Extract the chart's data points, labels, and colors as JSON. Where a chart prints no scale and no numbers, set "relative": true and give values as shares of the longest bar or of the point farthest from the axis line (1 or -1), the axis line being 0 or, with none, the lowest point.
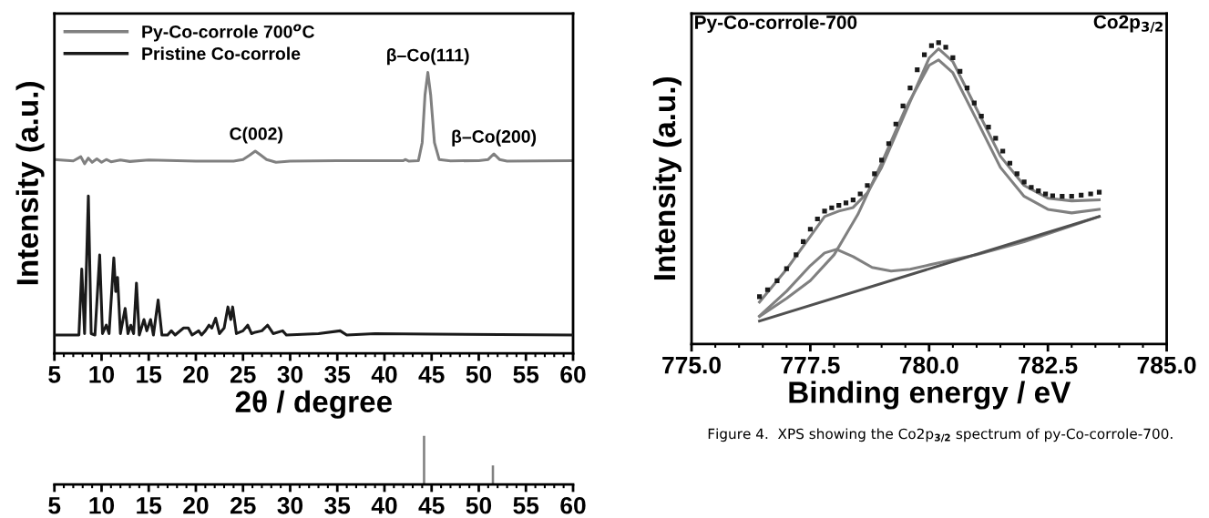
{
  "chart_data": [
    {
      "type": "line",
      "relative": true,
      "xlabel": "2θ / degree",
      "ylabel": "Intensity (a.u.)",
      "xlim": [
        5,
        60
      ],
      "xticks": [
        5,
        10,
        15,
        20,
        25,
        30,
        35,
        40,
        45,
        50,
        55,
        60
      ],
      "legend": "top left",
      "tick_labels": "x",
      "series": [
        {
          "name": "Py-Co-corrole 700$^{o}$C",
          "color": "#808080",
          "x": [
            5,
            7,
            7.8,
            8.2,
            8.6,
            9,
            9.5,
            10,
            10.5,
            11,
            12,
            13,
            15,
            18,
            20,
            24,
            25,
            25.7,
            26.3,
            26.9,
            27.5,
            28.5,
            30,
            35,
            40,
            42,
            42.2,
            42.6,
            43.6,
            44.0,
            44.3,
            44.6,
            44.9,
            45.3,
            45.8,
            47,
            50,
            51,
            51.6,
            52.2,
            53,
            60
          ],
          "values": [
            0.69,
            0.685,
            0.7,
            0.675,
            0.695,
            0.68,
            0.692,
            0.68,
            0.69,
            0.682,
            0.688,
            0.683,
            0.688,
            0.686,
            0.684,
            0.684,
            0.69,
            0.705,
            0.72,
            0.705,
            0.69,
            0.68,
            0.684,
            0.686,
            0.686,
            0.686,
            0.69,
            0.684,
            0.686,
            0.75,
            0.92,
            1.0,
            0.92,
            0.75,
            0.69,
            0.685,
            0.686,
            0.69,
            0.71,
            0.69,
            0.684,
            0.686
          ]
        },
        {
          "name": "Pristine Co-corrole",
          "color": "#1a1a1a",
          "x": [
            5,
            7.6,
            7.9,
            8.2,
            8.6,
            8.9,
            9.3,
            9.8,
            10.1,
            10.5,
            10.8,
            11.3,
            11.5,
            11.7,
            12.0,
            12.5,
            12.8,
            13.1,
            13.4,
            13.7,
            14.0,
            14.5,
            14.8,
            15.2,
            15.5,
            16.0,
            16.4,
            17,
            17.4,
            17.8,
            18.7,
            19.2,
            19.6,
            20.3,
            20.6,
            21,
            21.4,
            21.7,
            22.1,
            22.5,
            23.0,
            23.4,
            23.7,
            23.9,
            24.3,
            25,
            25.5,
            25.9,
            26.3,
            27.0,
            27.6,
            28.2,
            29.2,
            29.6,
            33,
            35.3,
            36,
            39,
            45,
            60
          ],
          "values": [
            0.065,
            0.065,
            0.3,
            0.07,
            0.56,
            0.07,
            0.065,
            0.35,
            0.07,
            0.1,
            0.07,
            0.34,
            0.22,
            0.27,
            0.07,
            0.16,
            0.07,
            0.1,
            0.07,
            0.25,
            0.065,
            0.12,
            0.08,
            0.12,
            0.065,
            0.19,
            0.065,
            0.065,
            0.08,
            0.065,
            0.09,
            0.09,
            0.065,
            0.08,
            0.065,
            0.08,
            0.1,
            0.09,
            0.125,
            0.07,
            0.09,
            0.165,
            0.12,
            0.165,
            0.07,
            0.08,
            0.1,
            0.07,
            0.075,
            0.08,
            0.1,
            0.07,
            0.08,
            0.065,
            0.07,
            0.08,
            0.065,
            0.07,
            0.068,
            0.065
          ]
        }
      ],
      "annotations": [
        {
          "text": "C(002)",
          "x": 26.4,
          "y": 0.72
        },
        {
          "text": "β–Co(111)",
          "x": 44.6,
          "y": 1.0
        },
        {
          "text": "β–Co(200)",
          "x": 51.6,
          "y": 0.71
        }
      ]
    },
    {
      "type": "bar",
      "relative": true,
      "xlim": [
        5,
        60
      ],
      "xticks": [
        5,
        10,
        15,
        20,
        25,
        30,
        35,
        40,
        45,
        50,
        55,
        60
      ],
      "tick_labels": "x",
      "color": "#808080",
      "x": [
        44.2,
        51.5
      ],
      "values": [
        1,
        0.39
      ]
    },
    {
      "type": "line",
      "relative": true,
      "xlabel": "Binding energy / eV",
      "ylabel": "Intensity (a.u.)",
      "title": "Py-Co-corrole-700",
      "subtitle": "Co2p$_{3/2}$",
      "xlim": [
        775,
        785
      ],
      "xticks": [
        {
          "value": 775,
          "label": "775.0"
        },
        {
          "value": 777.5,
          "label": "777.5"
        },
        {
          "value": 780,
          "label": "780.0"
        },
        {
          "value": 782.5,
          "label": "782.5"
        },
        {
          "value": 785,
          "label": "785.0"
        }
      ],
      "tick_labels": "x",
      "annotations": [
        "Figure 4.  XPS showing the Co2p$_{3/2}$ spectrum of py-Co-corrole-700."
      ],
      "series": [
        {
          "type": "scatter",
          "marker": "square",
          "color": "#1a1a1a",
          "x": [
            776.43,
            776.6,
            776.8,
            777.0,
            777.2,
            777.35,
            777.5,
            777.65,
            777.8,
            777.95,
            778.1,
            778.25,
            778.4,
            778.55,
            778.7,
            778.85,
            779.0,
            779.15,
            779.3,
            779.45,
            779.6,
            779.75,
            779.9,
            780.05,
            780.2,
            780.35,
            780.5,
            780.65,
            780.8,
            780.95,
            781.1,
            781.25,
            781.4,
            781.55,
            781.7,
            781.85,
            782.0,
            782.15,
            782.3,
            782.45,
            782.6,
            782.8,
            783.0,
            783.2,
            783.4,
            783.58
          ],
          "values": [
            0.157,
            0.18,
            0.21,
            0.25,
            0.296,
            0.34,
            0.381,
            0.415,
            0.441,
            0.452,
            0.46,
            0.468,
            0.478,
            0.498,
            0.526,
            0.565,
            0.61,
            0.665,
            0.73,
            0.79,
            0.85,
            0.91,
            0.96,
            0.99,
            1.0,
            0.985,
            0.95,
            0.905,
            0.85,
            0.8,
            0.756,
            0.72,
            0.683,
            0.64,
            0.6,
            0.565,
            0.538,
            0.52,
            0.508,
            0.498,
            0.492,
            0.49,
            0.49,
            0.494,
            0.498,
            0.504
          ]
        },
        {
          "type": "line",
          "color": "#808080",
          "x": [
            776.43,
            777.0,
            777.5,
            777.8,
            778.1,
            778.4,
            778.7,
            779.0,
            779.5,
            780.0,
            780.2,
            780.5,
            781.0,
            781.5,
            782.0,
            782.5,
            783.0,
            783.58
          ],
          "values": [
            0.139,
            0.248,
            0.357,
            0.423,
            0.441,
            0.453,
            0.502,
            0.586,
            0.768,
            0.949,
            0.98,
            0.937,
            0.78,
            0.623,
            0.526,
            0.484,
            0.475,
            0.478
          ]
        },
        {
          "type": "line",
          "color": "#808080",
          "x": [
            776.43,
            777.0,
            777.5,
            778.0,
            778.5,
            779.0,
            779.5,
            780.0,
            780.2,
            780.5,
            781.0,
            781.5,
            782.0,
            782.5,
            783.0,
            783.58
          ],
          "values": [
            0.091,
            0.151,
            0.21,
            0.296,
            0.43,
            0.6,
            0.78,
            0.925,
            0.943,
            0.9,
            0.744,
            0.586,
            0.49,
            0.447,
            0.435,
            0.447
          ]
        },
        {
          "type": "line",
          "color": "#808080",
          "x": [
            776.43,
            777.0,
            777.5,
            777.8,
            778.05,
            778.4,
            778.8,
            779.2,
            779.6,
            780.0,
            781.0,
            782.0,
            783.58
          ],
          "values": [
            0.093,
            0.175,
            0.26,
            0.302,
            0.314,
            0.29,
            0.254,
            0.242,
            0.248,
            0.262,
            0.296,
            0.339,
            0.423
          ]
        },
        {
          "type": "line",
          "color": "#505050",
          "x": [
            776.43,
            783.58
          ],
          "values": [
            0.076,
            0.423
          ]
        }
      ]
    }
  ]
}
